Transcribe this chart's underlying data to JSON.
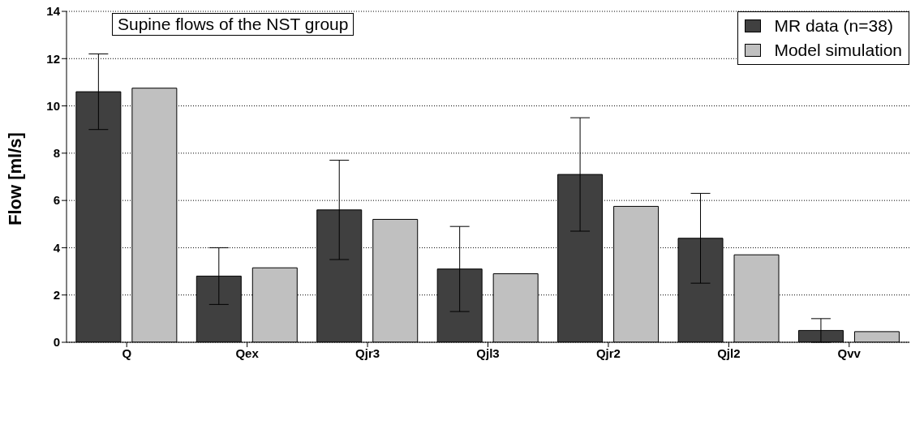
{
  "chart_data": {
    "type": "bar",
    "title": "Supine flows of the NST group",
    "ylabel": "Flow [ml/s]",
    "categories": [
      "Q",
      "Qex",
      "Qjr3",
      "Qjl3",
      "Qjr2",
      "Qjl2",
      "Qvv"
    ],
    "series": [
      {
        "name": "MR data (n=38)",
        "color": "#404040",
        "values": [
          10.6,
          2.8,
          5.6,
          3.1,
          7.1,
          4.4,
          0.5
        ],
        "errors": [
          1.6,
          1.2,
          2.1,
          1.8,
          2.4,
          1.9,
          0.5
        ]
      },
      {
        "name": "Model simulation",
        "color": "#c0c0c0",
        "values": [
          10.75,
          3.15,
          5.2,
          2.9,
          5.75,
          3.7,
          0.45
        ]
      }
    ],
    "ylim": [
      0,
      14
    ],
    "yticks": [
      0,
      2,
      4,
      6,
      8,
      10,
      12,
      14
    ],
    "grid": "y",
    "legend": "top right"
  }
}
